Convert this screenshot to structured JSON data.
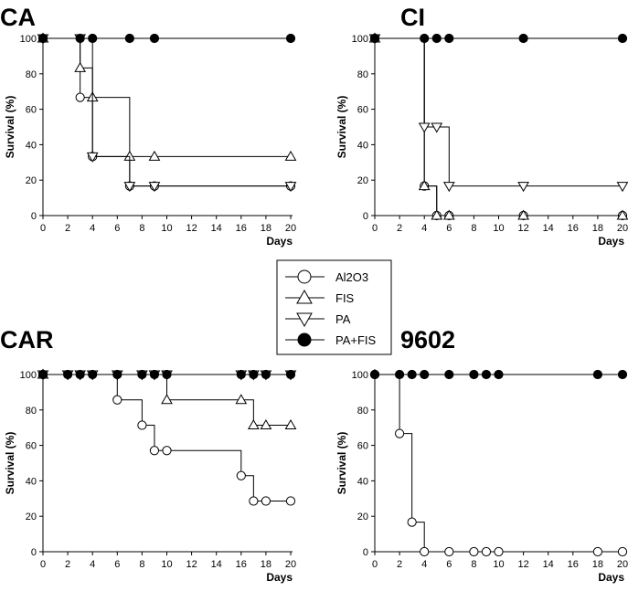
{
  "legend": {
    "title": "",
    "entries": [
      {
        "series": "Al2O3",
        "marker": "circle-open"
      },
      {
        "series": "FIS",
        "marker": "triangle-up-open"
      },
      {
        "series": "PA",
        "marker": "triangle-down-open"
      },
      {
        "series": "PA+FIS",
        "marker": "circle-filled"
      }
    ]
  },
  "chart_data": [
    {
      "type": "line",
      "step": true,
      "title": "CA",
      "xlabel": "Days",
      "ylabel": "Survival (%)",
      "xlim": [
        0,
        20
      ],
      "ylim": [
        0,
        100
      ],
      "xticks": [
        0,
        2,
        4,
        6,
        8,
        10,
        12,
        14,
        16,
        18,
        20
      ],
      "yticks": [
        0,
        20,
        40,
        60,
        80,
        100
      ],
      "series": [
        {
          "name": "Al2O3",
          "marker": "circle-open",
          "x": [
            0,
            3,
            4,
            7,
            9,
            20
          ],
          "values": [
            100,
            66.7,
            33.3,
            16.7,
            16.7,
            16.7
          ]
        },
        {
          "name": "FIS",
          "marker": "triangle-up-open",
          "x": [
            0,
            3,
            4,
            7,
            9,
            20
          ],
          "values": [
            100,
            83.3,
            66.7,
            33.3,
            33.3,
            33.3
          ]
        },
        {
          "name": "PA",
          "marker": "triangle-down-open",
          "x": [
            0,
            3,
            4,
            7,
            9,
            20
          ],
          "values": [
            100,
            100,
            33.3,
            16.7,
            16.7,
            16.7
          ]
        },
        {
          "name": "PA+FIS",
          "marker": "circle-filled",
          "x": [
            0,
            3,
            4,
            7,
            9,
            20
          ],
          "values": [
            100,
            100,
            100,
            100,
            100,
            100
          ]
        }
      ]
    },
    {
      "type": "line",
      "step": true,
      "title": "CI",
      "xlabel": "Days",
      "ylabel": "Survival (%)",
      "xlim": [
        0,
        20
      ],
      "ylim": [
        0,
        100
      ],
      "xticks": [
        0,
        2,
        4,
        6,
        8,
        10,
        12,
        14,
        16,
        18,
        20
      ],
      "yticks": [
        0,
        20,
        40,
        60,
        80,
        100
      ],
      "series": [
        {
          "name": "Al2O3",
          "marker": "circle-open",
          "x": [
            0,
            4,
            5,
            6,
            12,
            20
          ],
          "values": [
            100,
            16.7,
            0,
            0,
            0,
            0
          ]
        },
        {
          "name": "FIS",
          "marker": "triangle-up-open",
          "x": [
            0,
            4,
            5,
            6,
            12,
            20
          ],
          "values": [
            100,
            16.7,
            0,
            0,
            0,
            0
          ]
        },
        {
          "name": "PA",
          "marker": "triangle-down-open",
          "x": [
            0,
            4,
            5,
            6,
            12,
            20
          ],
          "values": [
            100,
            50,
            50,
            16.7,
            16.7,
            16.7
          ]
        },
        {
          "name": "PA+FIS",
          "marker": "circle-filled",
          "x": [
            0,
            4,
            5,
            6,
            12,
            20
          ],
          "values": [
            100,
            100,
            100,
            100,
            100,
            100
          ]
        }
      ]
    },
    {
      "type": "line",
      "step": true,
      "title": "CAR",
      "xlabel": "Days",
      "ylabel": "Survival (%)",
      "xlim": [
        0,
        20
      ],
      "ylim": [
        0,
        100
      ],
      "xticks": [
        0,
        2,
        4,
        6,
        8,
        10,
        12,
        14,
        16,
        18,
        20
      ],
      "yticks": [
        0,
        20,
        40,
        60,
        80,
        100
      ],
      "series": [
        {
          "name": "Al2O3",
          "marker": "circle-open",
          "x": [
            0,
            6,
            8,
            9,
            10,
            16,
            17,
            18,
            20
          ],
          "values": [
            100,
            85.7,
            71.4,
            57.1,
            57.1,
            42.9,
            28.6,
            28.6,
            28.6
          ]
        },
        {
          "name": "FIS",
          "marker": "triangle-up-open",
          "x": [
            0,
            10,
            16,
            17,
            18,
            20
          ],
          "values": [
            100,
            85.7,
            85.7,
            71.4,
            71.4,
            71.4
          ]
        },
        {
          "name": "PA",
          "marker": "triangle-down-open",
          "x": [
            0,
            2,
            3,
            4,
            6,
            8,
            9,
            10,
            16,
            17,
            18,
            20
          ],
          "values": [
            100,
            100,
            100,
            100,
            100,
            100,
            100,
            100,
            100,
            100,
            100,
            100
          ]
        },
        {
          "name": "PA+FIS",
          "marker": "circle-filled",
          "x": [
            0,
            2,
            3,
            4,
            6,
            8,
            9,
            10,
            16,
            17,
            18,
            20
          ],
          "values": [
            100,
            100,
            100,
            100,
            100,
            100,
            100,
            100,
            100,
            100,
            100,
            100
          ]
        }
      ]
    },
    {
      "type": "line",
      "step": true,
      "title": "9602",
      "xlabel": "Days",
      "ylabel": "Survival (%)",
      "xlim": [
        0,
        20
      ],
      "ylim": [
        0,
        100
      ],
      "xticks": [
        0,
        2,
        4,
        6,
        8,
        10,
        12,
        14,
        16,
        18,
        20
      ],
      "yticks": [
        0,
        20,
        40,
        60,
        80,
        100
      ],
      "series": [
        {
          "name": "Al2O3",
          "marker": "circle-open",
          "x": [
            0,
            2,
            3,
            4,
            6,
            8,
            9,
            10,
            18,
            20
          ],
          "values": [
            100,
            66.7,
            16.7,
            0,
            0,
            0,
            0,
            0,
            0,
            0
          ]
        },
        {
          "name": "PA+FIS",
          "marker": "circle-filled",
          "x": [
            0,
            2,
            3,
            4,
            6,
            8,
            9,
            10,
            18,
            20
          ],
          "values": [
            100,
            100,
            100,
            100,
            100,
            100,
            100,
            100,
            100,
            100
          ]
        }
      ]
    }
  ]
}
